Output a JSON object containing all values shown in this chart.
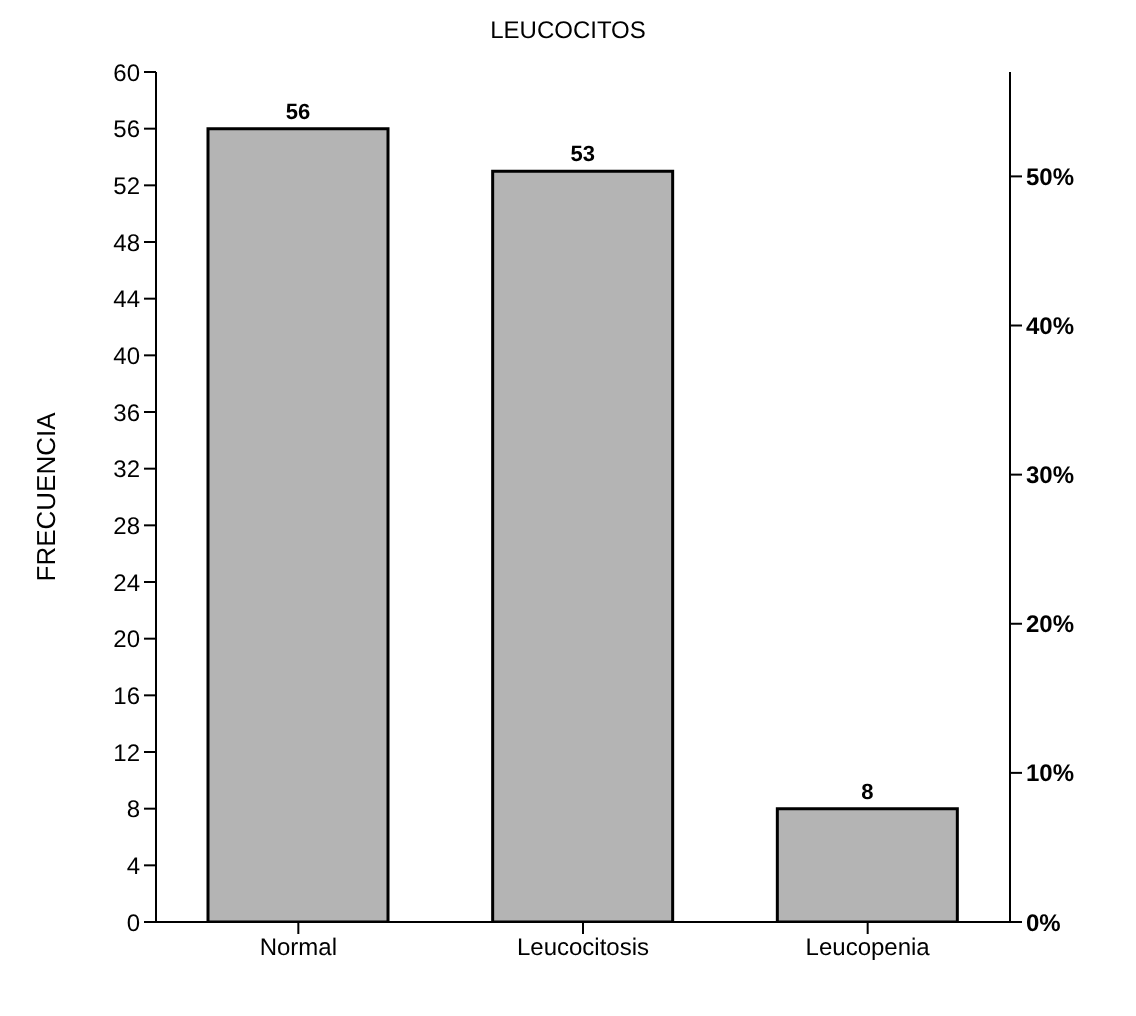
{
  "chart_data": {
    "type": "bar",
    "title": "LEUCOCITOS",
    "ylabel": "FRECUENCIA",
    "categories": [
      "Normal",
      "Leucocitosis",
      "Leucopenia"
    ],
    "values": [
      56,
      53,
      8
    ],
    "color": "#b4b4b4",
    "data_labels": true,
    "ylim": [
      0,
      60
    ],
    "yticks": [
      0,
      4,
      8,
      12,
      16,
      20,
      24,
      28,
      32,
      36,
      40,
      44,
      48,
      52,
      56,
      60
    ],
    "y2lim": [
      0,
      57
    ],
    "y2ticks": [
      {
        "value": 0,
        "label": "0%"
      },
      {
        "value": 10,
        "label": "10%"
      },
      {
        "value": 20,
        "label": "20%"
      },
      {
        "value": 30,
        "label": "30%"
      },
      {
        "value": 40,
        "label": "40%"
      },
      {
        "value": 50,
        "label": "50%"
      }
    ]
  }
}
